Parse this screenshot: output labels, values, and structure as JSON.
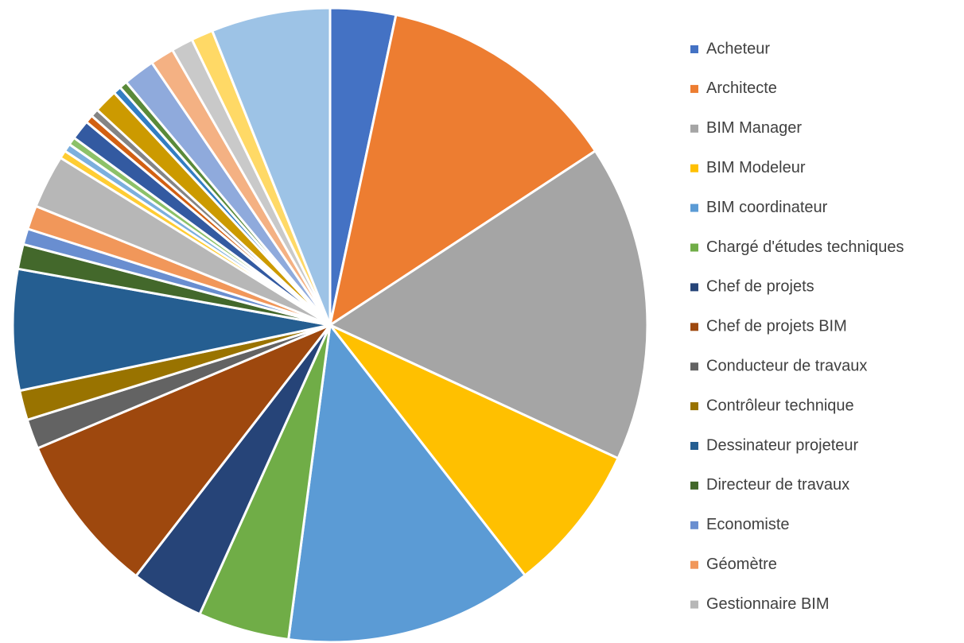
{
  "chart_data": {
    "type": "pie",
    "categories": [
      "Acheteur",
      "Architecte",
      "BIM Manager",
      "BIM Modeleur",
      "BIM coordinateur",
      "Chargé d'études techniques",
      "Chef de projets",
      "Chef de projets BIM",
      "Conducteur de travaux",
      "Contrôleur technique",
      "Dessinateur projeteur",
      "Directeur de travaux",
      "Economiste",
      "Géomètre",
      "Gestionnaire BIM",
      null,
      null,
      null,
      null,
      null,
      null,
      null,
      null,
      null,
      null,
      null,
      null,
      null,
      null
    ],
    "values": [
      3.3,
      12.3,
      16,
      7.5,
      12.5,
      4.6,
      3.7,
      8.1,
      1.5,
      1.5,
      6.1,
      1.25,
      0.8,
      1.2,
      2.7,
      0.4,
      0.4,
      0.4,
      1.0,
      0.4,
      0.4,
      1.2,
      0.4,
      0.4,
      1.6,
      1.2,
      1.1,
      1.1,
      6
    ],
    "colors": [
      "#4472C4",
      "#ED7D31",
      "#A5A5A5",
      "#FFC000",
      "#5B9BD5",
      "#70AD47",
      "#264478",
      "#9E480E",
      "#636363",
      "#997300",
      "#255E91",
      "#43682B",
      "#698ED0",
      "#F1975A",
      "#B7B7B7",
      "#FFCD33",
      "#7CAFDD",
      "#8CC168",
      "#335AA1",
      "#D26012",
      "#848484",
      "#CC9A00",
      "#327DC2",
      "#5A8A39",
      "#8FAADC",
      "#F4B183",
      "#C9C9C9",
      "#FFD966",
      "#9DC3E6"
    ]
  }
}
